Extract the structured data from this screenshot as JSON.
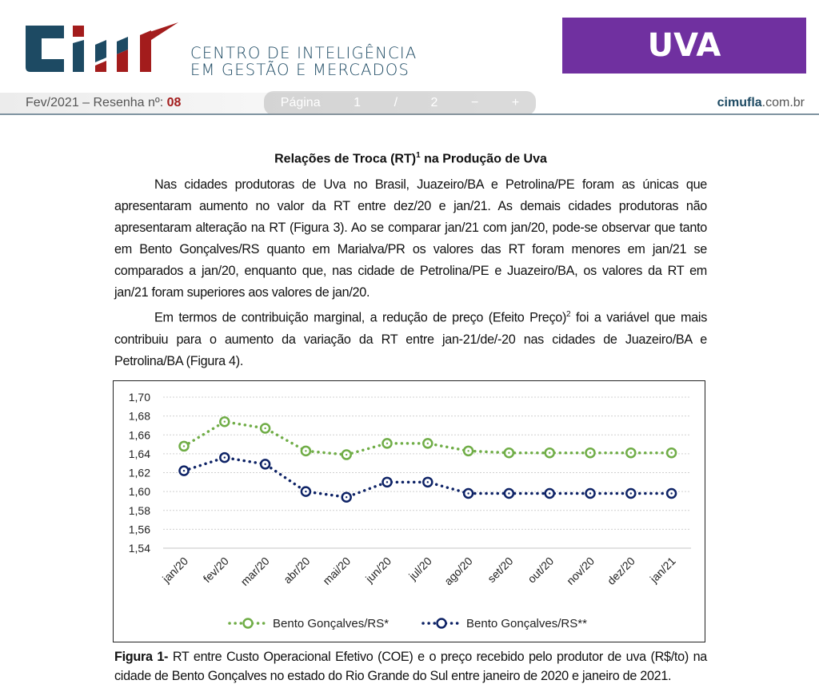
{
  "header": {
    "logo_letters": "CIM",
    "org_line1": "CENTRO DE INTELIGÊNCIA",
    "org_line2": "EM GESTÃO E MERCADOS",
    "product_badge": "UVA",
    "issue_prefix": "Fev/2021 – Resenha nº:",
    "issue_number": "08",
    "site_bold": "cimufla",
    "site_rest": ".com.br",
    "colors": {
      "brand_blue": "#1d4a63",
      "brand_red": "#a31c1c",
      "badge_purple": "#7030a0"
    }
  },
  "article": {
    "title": "Relações de Troca (RT)",
    "title_sup": "1",
    "title_rest": " na Produção de Uva",
    "para1": "Nas cidades produtoras de Uva no Brasil, Juazeiro/BA e Petrolina/PE foram as únicas que apresentaram aumento no valor da RT entre dez/20 e jan/21. As demais cidades produtoras não apresentaram alteração na RT (Figura 3). Ao se comparar jan/21 com jan/20, pode-se observar que tanto em Bento Gonçalves/RS quanto em Marialva/PR os valores das RT foram menores em jan/21 se comparados a jan/20, enquanto que, nas cidade de Petrolina/PE e Juazeiro/BA, os valores da RT em jan/21 foram superiores aos valores de jan/20.",
    "para2_a": "Em termos de contribuição marginal, a redução de preço (Efeito Preço)",
    "para2_sup": "2",
    "para2_b": " foi a variável que mais contribuiu para o aumento da variação da RT entre jan-21/de/-20 nas cidades de Juazeiro/BA e Petrolina/BA (Figura 4).",
    "caption_label": "Figura 1-",
    "caption_text": " RT entre Custo Operacional Efetivo (COE) e o preço recebido pelo produtor de uva (R$/to) na cidade de Bento Gonçalves no estado do Rio Grande do Sul entre janeiro de 2020 e janeiro de 2021."
  },
  "viewer_overlay": {
    "page_label": "Página",
    "page_current": "1",
    "page_sep": "/",
    "page_total": "2",
    "zoom_out": "−",
    "zoom_in": "+"
  },
  "chart_data": {
    "type": "line",
    "categories": [
      "jan/20",
      "fev/20",
      "mar/20",
      "abr/20",
      "mai/20",
      "jun/20",
      "jul/20",
      "ago/20",
      "set/20",
      "out/20",
      "nov/20",
      "dez/20",
      "jan/21"
    ],
    "ylim": [
      1.54,
      1.7
    ],
    "yticks": [
      "1,54",
      "1,56",
      "1,58",
      "1,60",
      "1,62",
      "1,64",
      "1,66",
      "1,68",
      "1,70"
    ],
    "grid": true,
    "legend_position": "bottom",
    "series": [
      {
        "name": "Bento Gonçalves/RS*",
        "color": "#70ad47",
        "values": [
          1.648,
          1.674,
          1.667,
          1.643,
          1.639,
          1.651,
          1.651,
          1.643,
          1.641,
          1.641,
          1.641,
          1.641,
          1.641
        ]
      },
      {
        "name": "Bento Gonçalves/RS**",
        "color": "#0e2366",
        "values": [
          1.622,
          1.636,
          1.629,
          1.6,
          1.594,
          1.61,
          1.61,
          1.598,
          1.598,
          1.598,
          1.598,
          1.598,
          1.598
        ]
      }
    ]
  }
}
